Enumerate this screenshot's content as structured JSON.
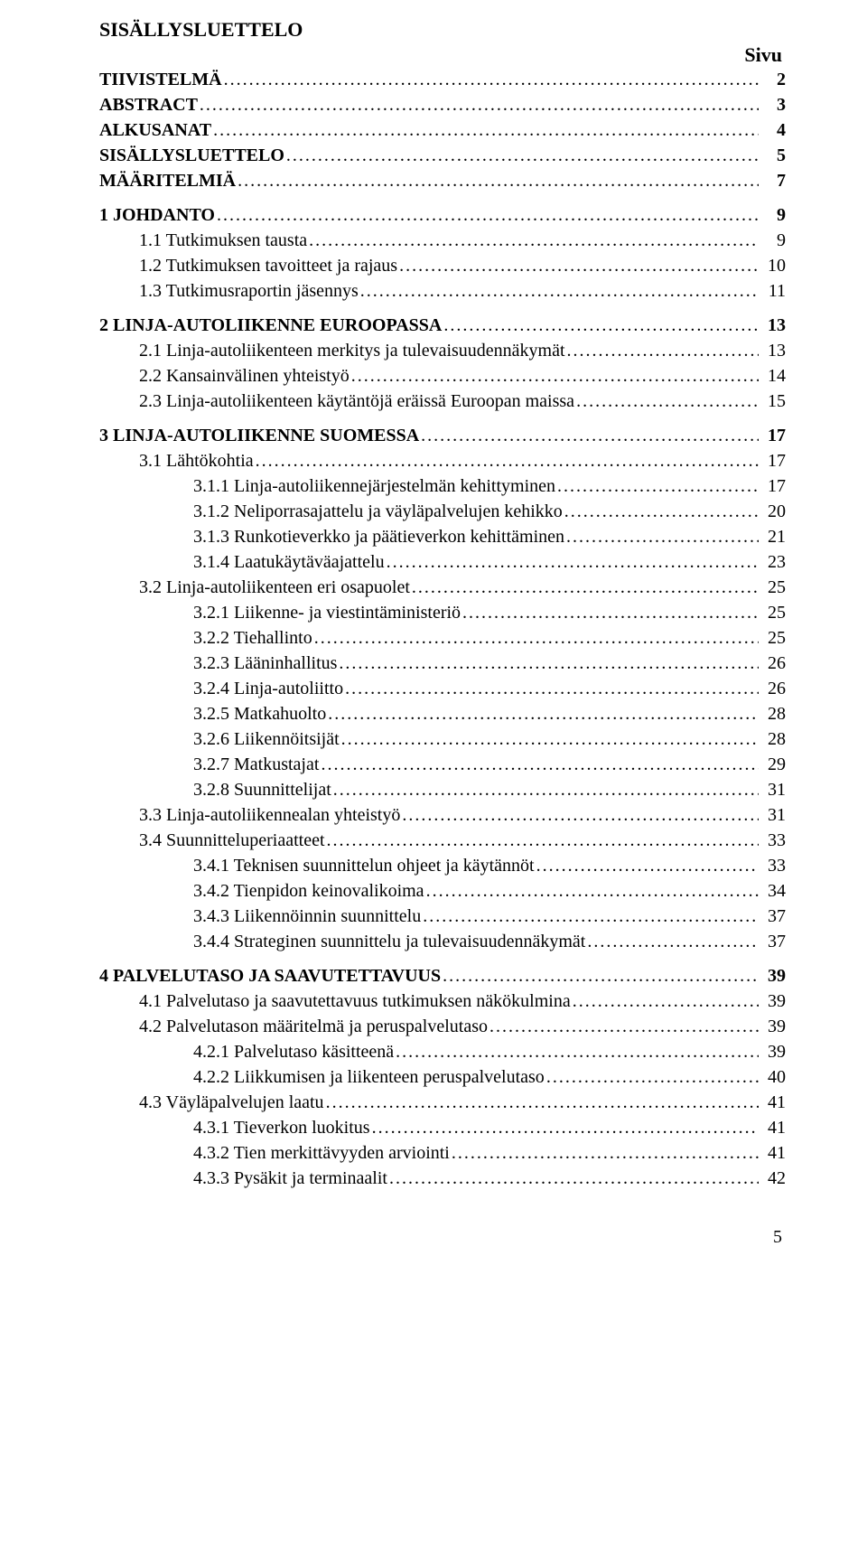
{
  "title": "SISÄLLYSLUETTELO",
  "pageLabel": "Sivu",
  "footerPage": "5",
  "toc": [
    {
      "label": "TIIVISTELMÄ",
      "page": "2",
      "indent": 0,
      "bold": true,
      "gapAfter": false
    },
    {
      "label": "ABSTRACT",
      "page": "3",
      "indent": 0,
      "bold": true,
      "gapAfter": false
    },
    {
      "label": "ALKUSANAT",
      "page": "4",
      "indent": 0,
      "bold": true,
      "gapAfter": false
    },
    {
      "label": "SISÄLLYSLUETTELO",
      "page": "5",
      "indent": 0,
      "bold": true,
      "gapAfter": false
    },
    {
      "label": "MÄÄRITELMIÄ",
      "page": "7",
      "indent": 0,
      "bold": true,
      "gapAfter": true
    },
    {
      "label": "1   JOHDANTO",
      "page": "9",
      "indent": 1,
      "bold": true,
      "gapAfter": false
    },
    {
      "label": "1.1 Tutkimuksen tausta",
      "page": "9",
      "indent": 2,
      "bold": false,
      "gapAfter": false
    },
    {
      "label": "1.2 Tutkimuksen tavoitteet ja rajaus",
      "page": "10",
      "indent": 2,
      "bold": false,
      "gapAfter": false
    },
    {
      "label": "1.3 Tutkimusraportin jäsennys",
      "page": "11",
      "indent": 2,
      "bold": false,
      "gapAfter": true
    },
    {
      "label": "2   LINJA-AUTOLIIKENNE EUROOPASSA",
      "page": "13",
      "indent": 1,
      "bold": true,
      "gapAfter": false
    },
    {
      "label": "2.1 Linja-autoliikenteen merkitys ja tulevaisuudennäkymät",
      "page": "13",
      "indent": 2,
      "bold": false,
      "gapAfter": false
    },
    {
      "label": "2.2 Kansainvälinen yhteistyö",
      "page": "14",
      "indent": 2,
      "bold": false,
      "gapAfter": false
    },
    {
      "label": "2.3 Linja-autoliikenteen käytäntöjä eräissä Euroopan maissa",
      "page": "15",
      "indent": 2,
      "bold": false,
      "gapAfter": true
    },
    {
      "label": "3   LINJA-AUTOLIIKENNE SUOMESSA",
      "page": "17",
      "indent": 1,
      "bold": true,
      "gapAfter": false
    },
    {
      "label": "3.1 Lähtökohtia",
      "page": "17",
      "indent": 2,
      "bold": false,
      "gapAfter": false
    },
    {
      "label": "3.1.1 Linja-autoliikennejärjestelmän kehittyminen",
      "page": "17",
      "indent": 3,
      "bold": false,
      "gapAfter": false
    },
    {
      "label": "3.1.2 Neliporrasajattelu ja väyläpalvelujen kehikko",
      "page": "20",
      "indent": 3,
      "bold": false,
      "gapAfter": false
    },
    {
      "label": "3.1.3 Runkotieverkko ja päätieverkon kehittäminen",
      "page": "21",
      "indent": 3,
      "bold": false,
      "gapAfter": false
    },
    {
      "label": "3.1.4 Laatukäytäväajattelu",
      "page": "23",
      "indent": 3,
      "bold": false,
      "gapAfter": false
    },
    {
      "label": "3.2 Linja-autoliikenteen eri osapuolet",
      "page": "25",
      "indent": 2,
      "bold": false,
      "gapAfter": false
    },
    {
      "label": "3.2.1 Liikenne- ja viestintäministeriö",
      "page": "25",
      "indent": 3,
      "bold": false,
      "gapAfter": false
    },
    {
      "label": "3.2.2 Tiehallinto",
      "page": "25",
      "indent": 3,
      "bold": false,
      "gapAfter": false
    },
    {
      "label": "3.2.3 Lääninhallitus",
      "page": "26",
      "indent": 3,
      "bold": false,
      "gapAfter": false
    },
    {
      "label": "3.2.4 Linja-autoliitto",
      "page": "26",
      "indent": 3,
      "bold": false,
      "gapAfter": false
    },
    {
      "label": "3.2.5 Matkahuolto",
      "page": "28",
      "indent": 3,
      "bold": false,
      "gapAfter": false
    },
    {
      "label": "3.2.6 Liikennöitsijät",
      "page": "28",
      "indent": 3,
      "bold": false,
      "gapAfter": false
    },
    {
      "label": "3.2.7 Matkustajat",
      "page": "29",
      "indent": 3,
      "bold": false,
      "gapAfter": false
    },
    {
      "label": "3.2.8 Suunnittelijat",
      "page": "31",
      "indent": 3,
      "bold": false,
      "gapAfter": false
    },
    {
      "label": "3.3 Linja-autoliikennealan yhteistyö",
      "page": "31",
      "indent": 2,
      "bold": false,
      "gapAfter": false
    },
    {
      "label": "3.4 Suunnitteluperiaatteet",
      "page": "33",
      "indent": 2,
      "bold": false,
      "gapAfter": false
    },
    {
      "label": "3.4.1 Teknisen suunnittelun ohjeet ja käytännöt",
      "page": "33",
      "indent": 3,
      "bold": false,
      "gapAfter": false
    },
    {
      "label": "3.4.2 Tienpidon keinovalikoima",
      "page": "34",
      "indent": 3,
      "bold": false,
      "gapAfter": false
    },
    {
      "label": "3.4.3 Liikennöinnin suunnittelu",
      "page": "37",
      "indent": 3,
      "bold": false,
      "gapAfter": false
    },
    {
      "label": "3.4.4 Strateginen suunnittelu ja tulevaisuudennäkymät",
      "page": "37",
      "indent": 3,
      "bold": false,
      "gapAfter": true
    },
    {
      "label": "4   PALVELUTASO JA SAAVUTETTAVUUS",
      "page": "39",
      "indent": 1,
      "bold": true,
      "gapAfter": false
    },
    {
      "label": "4.1 Palvelutaso ja saavutettavuus tutkimuksen näkökulmina",
      "page": "39",
      "indent": 2,
      "bold": false,
      "gapAfter": false
    },
    {
      "label": "4.2 Palvelutason määritelmä ja peruspalvelutaso",
      "page": "39",
      "indent": 2,
      "bold": false,
      "gapAfter": false
    },
    {
      "label": "4.2.1 Palvelutaso käsitteenä",
      "page": "39",
      "indent": 3,
      "bold": false,
      "gapAfter": false
    },
    {
      "label": "4.2.2 Liikkumisen ja liikenteen peruspalvelutaso",
      "page": "40",
      "indent": 3,
      "bold": false,
      "gapAfter": false
    },
    {
      "label": "4.3 Väyläpalvelujen laatu",
      "page": "41",
      "indent": 2,
      "bold": false,
      "gapAfter": false
    },
    {
      "label": "4.3.1 Tieverkon luokitus",
      "page": "41",
      "indent": 3,
      "bold": false,
      "gapAfter": false
    },
    {
      "label": "4.3.2 Tien merkittävyyden arviointi",
      "page": "41",
      "indent": 3,
      "bold": false,
      "gapAfter": false
    },
    {
      "label": "4.3.3 Pysäkit ja terminaalit",
      "page": "42",
      "indent": 3,
      "bold": false,
      "gapAfter": false
    }
  ]
}
